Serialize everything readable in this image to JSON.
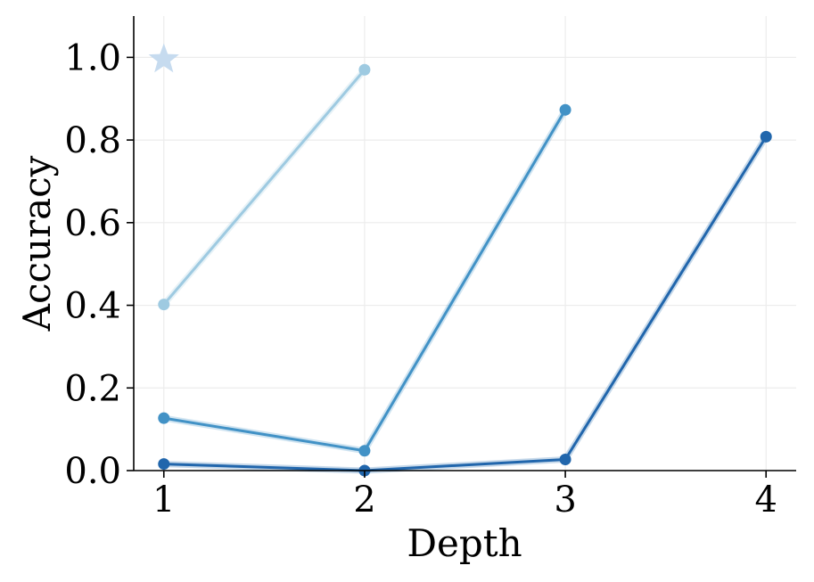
{
  "chart_data": {
    "type": "line",
    "xlabel": "Depth",
    "ylabel": "Accuracy",
    "x_ticks": [
      "1",
      "2",
      "3",
      "4"
    ],
    "y_ticks": [
      "0.0",
      "0.2",
      "0.4",
      "0.6",
      "0.8",
      "1.0"
    ],
    "xlim": [
      0.85,
      4.15
    ],
    "ylim": [
      0,
      1.1
    ],
    "grid": true,
    "series": [
      {
        "color": "#c6dbef",
        "marker": "star",
        "points": [
          [
            1,
            0.995
          ]
        ]
      },
      {
        "color": "#9ecae1",
        "marker": "circle",
        "points": [
          [
            1,
            0.402
          ],
          [
            2,
            0.97
          ]
        ]
      },
      {
        "color": "#4292c6",
        "marker": "circle",
        "points": [
          [
            1,
            0.127
          ],
          [
            2,
            0.048
          ],
          [
            3,
            0.873
          ]
        ]
      },
      {
        "color": "#2166ac",
        "marker": "circle",
        "points": [
          [
            1,
            0.016
          ],
          [
            2,
            0.0
          ],
          [
            3,
            0.027
          ],
          [
            4,
            0.808
          ]
        ]
      }
    ]
  }
}
